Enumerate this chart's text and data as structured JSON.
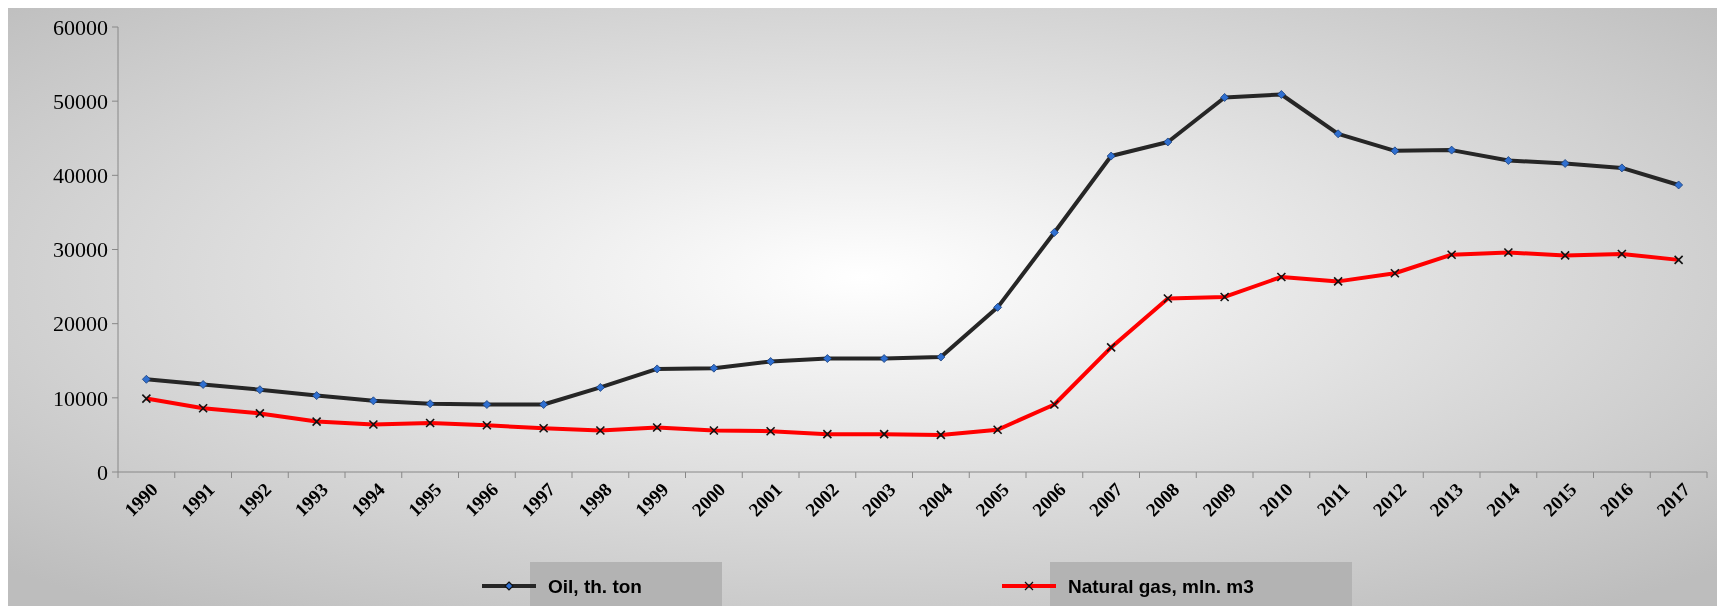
{
  "chart_data": {
    "type": "line",
    "categories": [
      "1990",
      "1991",
      "1992",
      "1993",
      "1994",
      "1995",
      "1996",
      "1997",
      "1998",
      "1999",
      "2000",
      "2001",
      "2002",
      "2003",
      "2004",
      "2005",
      "2006",
      "2007",
      "2008",
      "2009",
      "2010",
      "2011",
      "2012",
      "2013",
      "2014",
      "2015",
      "2016",
      "2017"
    ],
    "series": [
      {
        "name": "Oil, th. ton",
        "color": "#262626",
        "marker": "diamond",
        "values": [
          12500,
          11800,
          11100,
          10300,
          9600,
          9200,
          9100,
          9100,
          11400,
          13900,
          14000,
          14900,
          15300,
          15300,
          15500,
          22200,
          32300,
          42600,
          44500,
          50500,
          50900,
          45600,
          43300,
          43400,
          42000,
          41600,
          41000,
          38700
        ]
      },
      {
        "name": "Natural gas, mln. m3",
        "color": "#ff0000",
        "marker": "cross",
        "values": [
          9900,
          8600,
          7900,
          6800,
          6400,
          6600,
          6300,
          5900,
          5600,
          6000,
          5600,
          5500,
          5100,
          5100,
          5000,
          5700,
          9100,
          16800,
          23400,
          23600,
          26300,
          25700,
          26800,
          29300,
          29600,
          29200,
          29400,
          28600
        ]
      }
    ],
    "ylim": [
      0,
      60000
    ],
    "yticks": [
      0,
      10000,
      20000,
      30000,
      40000,
      50000,
      60000
    ],
    "grid": false,
    "legend": "bottom",
    "line_style": "solid"
  }
}
